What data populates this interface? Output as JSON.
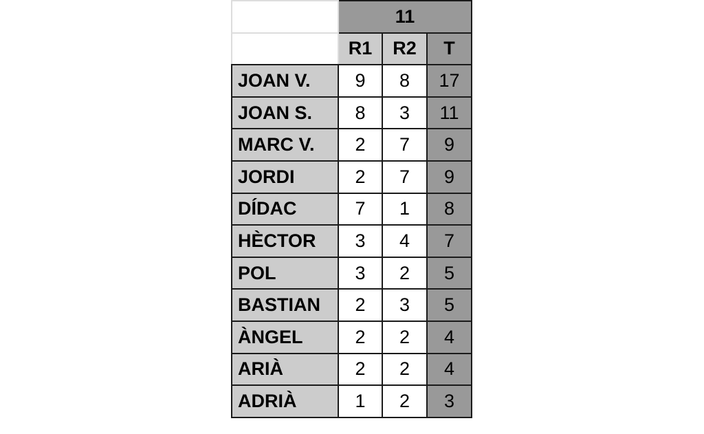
{
  "header": {
    "group": "11",
    "columns": [
      "R1",
      "R2",
      "T"
    ]
  },
  "rows": [
    {
      "name": "JOAN V.",
      "r1": "9",
      "r2": "8",
      "t": "17"
    },
    {
      "name": "JOAN S.",
      "r1": "8",
      "r2": "3",
      "t": "11"
    },
    {
      "name": "MARC V.",
      "r1": "2",
      "r2": "7",
      "t": "9"
    },
    {
      "name": "JORDI",
      "r1": "2",
      "r2": "7",
      "t": "9"
    },
    {
      "name": "DÍDAC",
      "r1": "7",
      "r2": "1",
      "t": "8"
    },
    {
      "name": "HÈCTOR",
      "r1": "3",
      "r2": "4",
      "t": "7"
    },
    {
      "name": "POL",
      "r1": "3",
      "r2": "2",
      "t": "5"
    },
    {
      "name": "BASTIAN",
      "r1": "2",
      "r2": "3",
      "t": "5"
    },
    {
      "name": "ÀNGEL",
      "r1": "2",
      "r2": "2",
      "t": "4"
    },
    {
      "name": "ARIÀ",
      "r1": "2",
      "r2": "2",
      "t": "4"
    },
    {
      "name": "ADRIÀ",
      "r1": "1",
      "r2": "2",
      "t": "3"
    }
  ]
}
